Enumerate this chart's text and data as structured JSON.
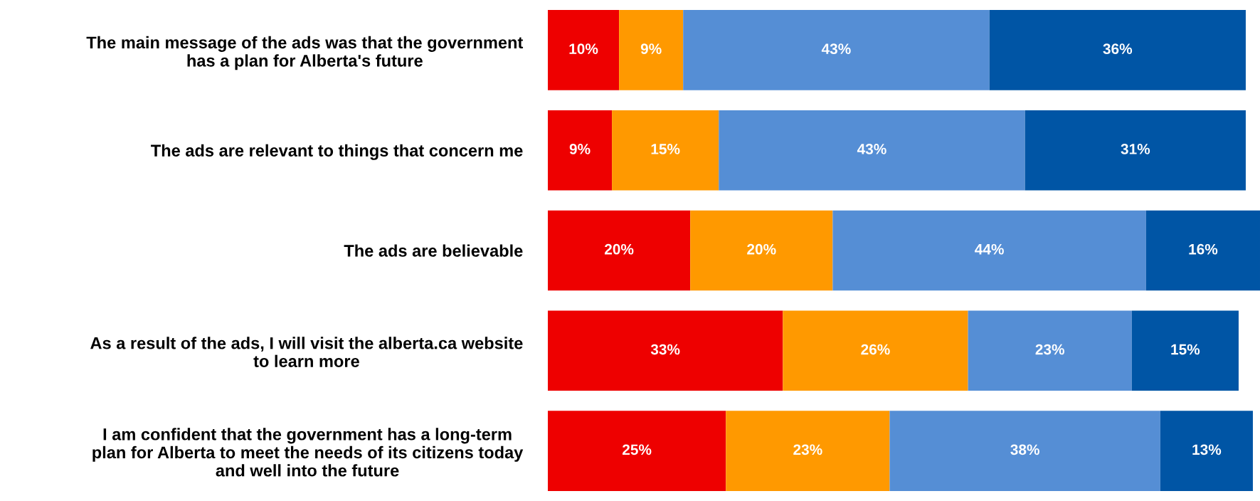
{
  "chart_data": {
    "type": "bar",
    "orientation": "horizontal",
    "stacked": true,
    "categories": [
      "The main message of the ads was that the government\nhas a plan for Alberta's future",
      "The ads are relevant to things that concern me",
      "The ads are believable",
      "As a result of the ads, I will visit the alberta.ca website\nto learn more",
      "I am confident that the government has a long-term\nplan for Alberta to meet the needs of its citizens today\nand well into the future"
    ],
    "series": [
      {
        "color": "#ee0000",
        "values": [
          10,
          9,
          20,
          33,
          25
        ],
        "value_labels": [
          "10%",
          "9%",
          "20%",
          "33%",
          "25%"
        ]
      },
      {
        "color": "#ff9900",
        "values": [
          9,
          15,
          20,
          26,
          23
        ],
        "value_labels": [
          "9%",
          "15%",
          "20%",
          "26%",
          "23%"
        ]
      },
      {
        "color": "#558ed5",
        "values": [
          43,
          43,
          44,
          23,
          38
        ],
        "value_labels": [
          "43%",
          "43%",
          "44%",
          "23%",
          "38%"
        ]
      },
      {
        "color": "#0055a5",
        "values": [
          36,
          31,
          16,
          15,
          13
        ],
        "value_labels": [
          "36%",
          "31%",
          "16%",
          "15%",
          "13%"
        ]
      }
    ],
    "xlim": [
      0,
      100
    ],
    "tick_labels": "y",
    "grid": false,
    "legend": false
  }
}
